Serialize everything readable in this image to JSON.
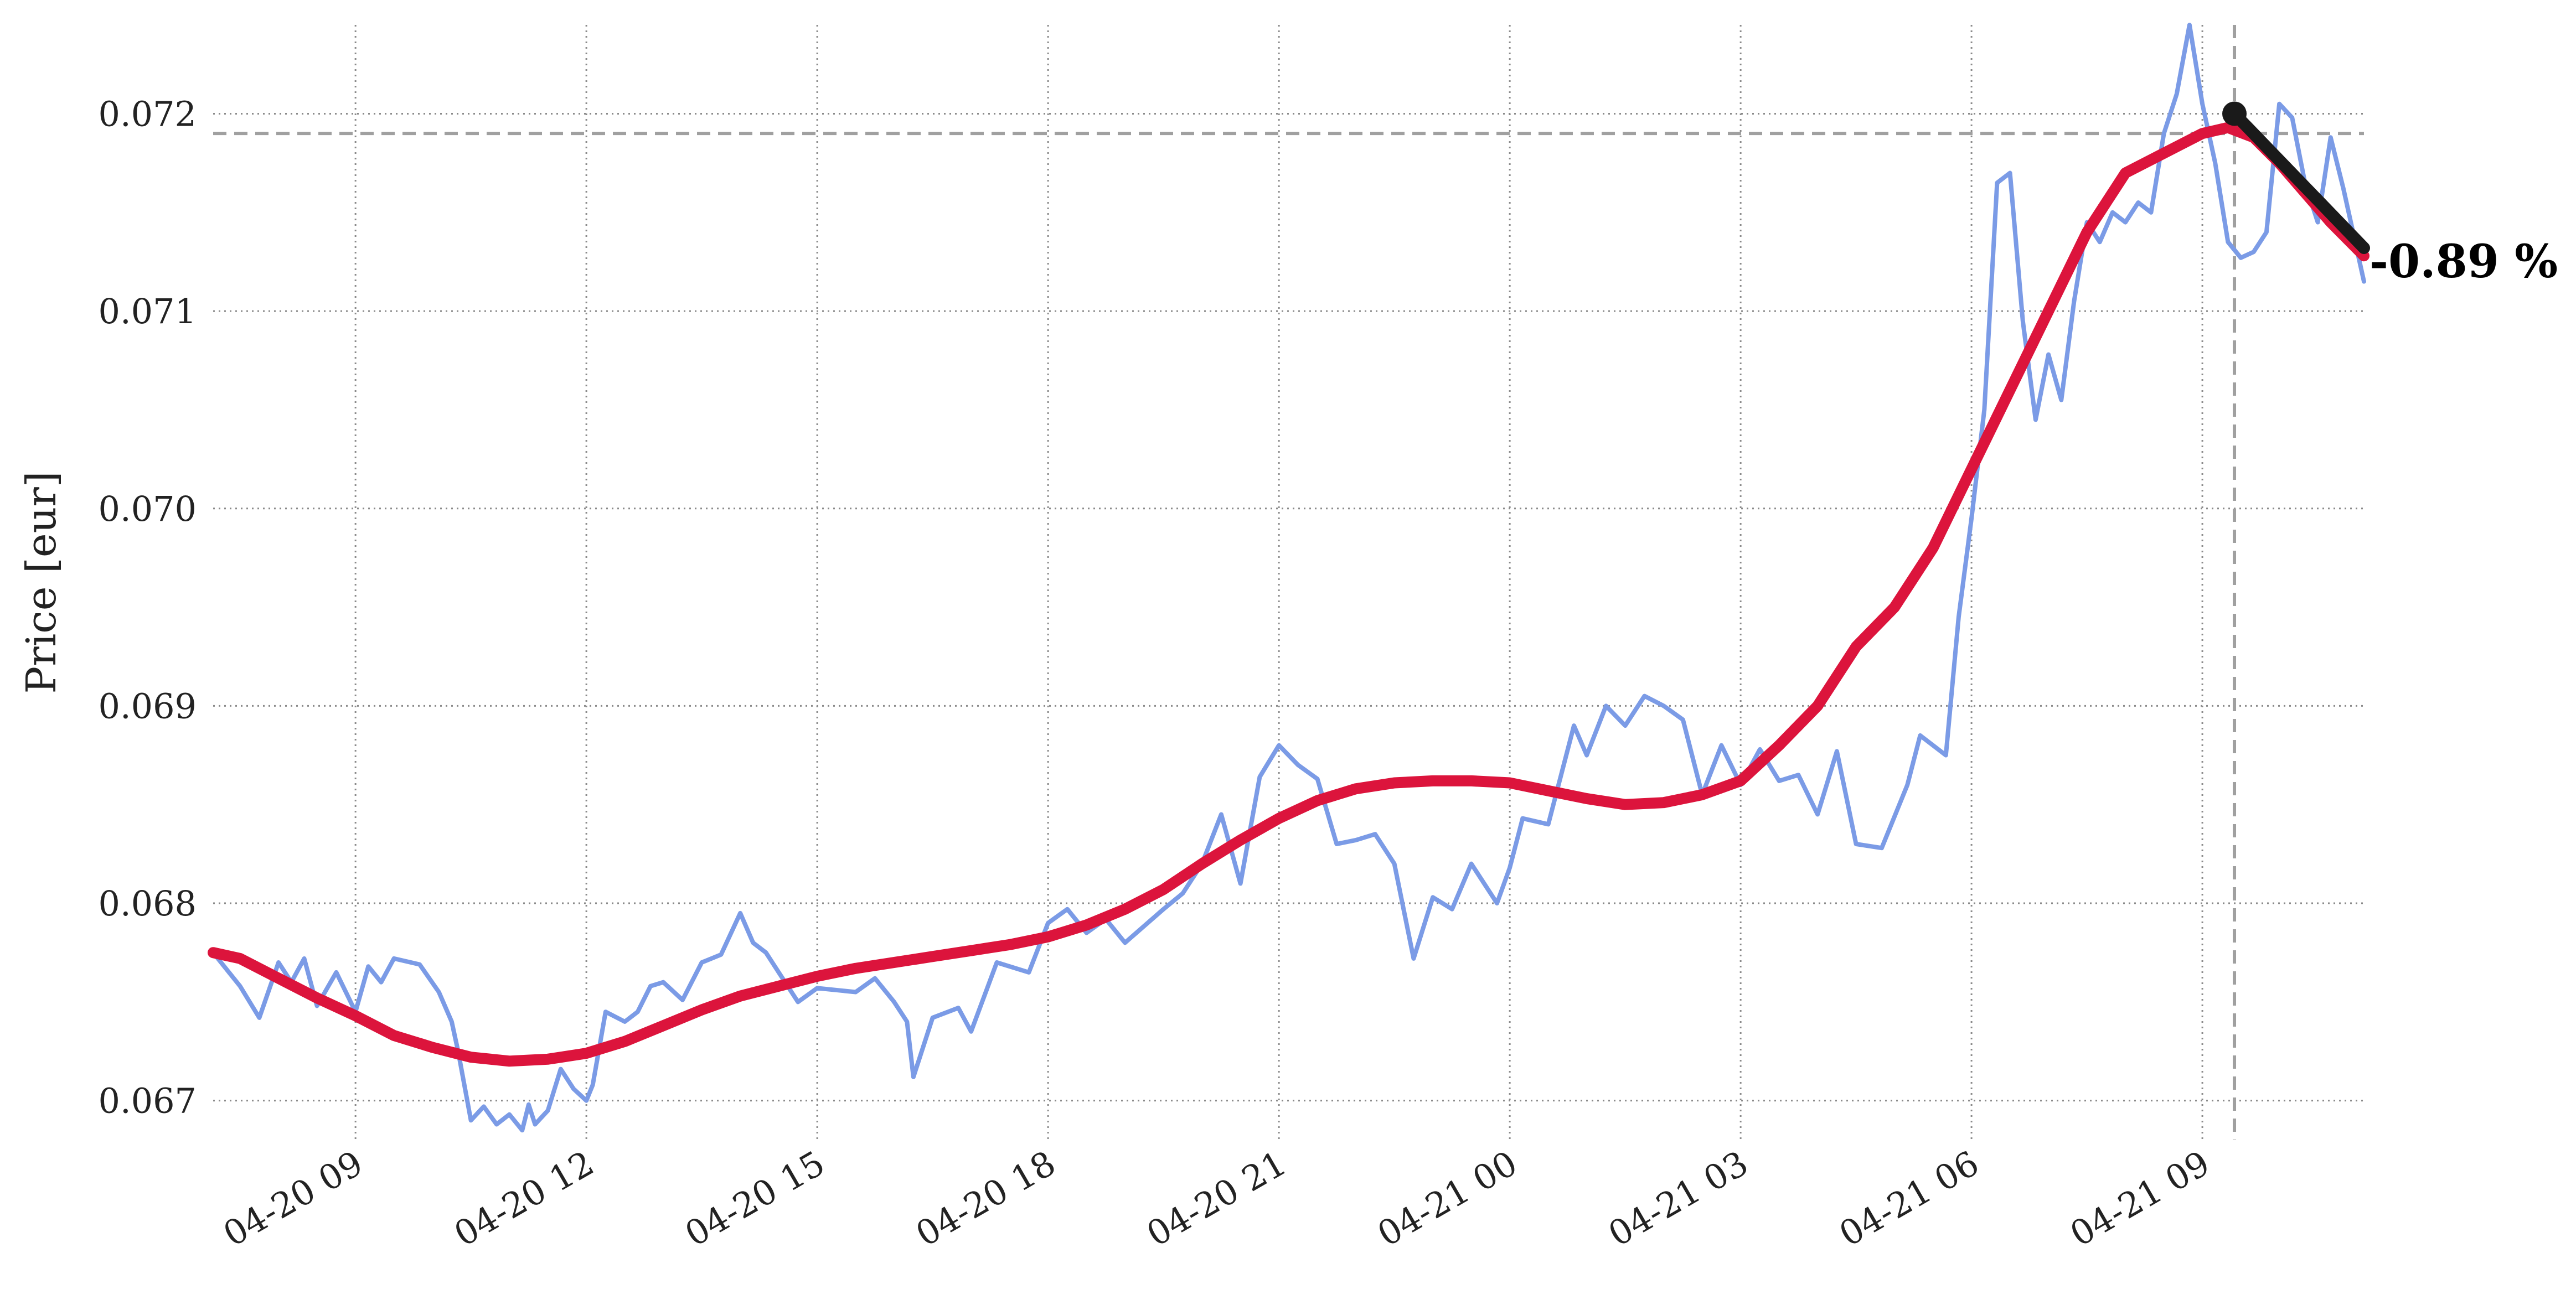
{
  "chart_data": {
    "type": "line",
    "title": "",
    "xlabel": "",
    "ylabel": "Price [eur]",
    "xlim": [
      "2024-04-20 07:09",
      "2024-04-21 11:06"
    ],
    "ylim": [
      0.0668,
      0.07245
    ],
    "grid": true,
    "x_ticks": [
      "04-20 09",
      "04-20 12",
      "04-20 15",
      "04-20 18",
      "04-20 21",
      "04-21 00",
      "04-21 03",
      "04-21 06",
      "04-21 09"
    ],
    "y_ticks": [
      "0.067",
      "0.068",
      "0.069",
      "0.070",
      "0.071",
      "0.072"
    ],
    "reference_lines": {
      "horizontal_price": 0.0719,
      "vertical_time": "04-21 09:25"
    },
    "annotation": {
      "text": "-0.89 %",
      "at_time": "04-21 11:06",
      "at_price": 0.07125
    },
    "colors": {
      "price": "#7b9be6",
      "smoothed": "#dc143c",
      "trend": "#1a1a1a",
      "reference": "#a0a0a0"
    },
    "series": [
      {
        "key": "price",
        "x": [
          "04-20 07:09",
          "04-20 07:30",
          "04-20 07:45",
          "04-20 08:00",
          "04-20 08:10",
          "04-20 08:20",
          "04-20 08:30",
          "04-20 08:45",
          "04-20 09:00",
          "04-20 09:10",
          "04-20 09:20",
          "04-20 09:30",
          "04-20 09:50",
          "04-20 10:05",
          "04-20 10:15",
          "04-20 10:20",
          "04-20 10:30",
          "04-20 10:40",
          "04-20 10:50",
          "04-20 11:00",
          "04-20 11:10",
          "04-20 11:15",
          "04-20 11:20",
          "04-20 11:30",
          "04-20 11:40",
          "04-20 11:50",
          "04-20 12:00",
          "04-20 12:05",
          "04-20 12:15",
          "04-20 12:30",
          "04-20 12:40",
          "04-20 12:50",
          "04-20 13:00",
          "04-20 13:15",
          "04-20 13:30",
          "04-20 13:45",
          "04-20 14:00",
          "04-20 14:10",
          "04-20 14:20",
          "04-20 14:30",
          "04-20 14:45",
          "04-20 15:00",
          "04-20 15:30",
          "04-20 15:45",
          "04-20 16:00",
          "04-20 16:10",
          "04-20 16:15",
          "04-20 16:30",
          "04-20 16:50",
          "04-20 17:00",
          "04-20 17:20",
          "04-20 17:45",
          "04-20 18:00",
          "04-20 18:15",
          "04-20 18:30",
          "04-20 18:45",
          "04-20 19:00",
          "04-20 19:30",
          "04-20 19:45",
          "04-20 20:00",
          "04-20 20:15",
          "04-20 20:30",
          "04-20 20:45",
          "04-20 21:00",
          "04-20 21:15",
          "04-20 21:30",
          "04-20 21:45",
          "04-20 22:00",
          "04-20 22:15",
          "04-20 22:30",
          "04-20 22:45",
          "04-20 23:00",
          "04-20 23:15",
          "04-20 23:30",
          "04-20 23:50",
          "04-21 00:00",
          "04-21 00:10",
          "04-21 00:30",
          "04-21 00:50",
          "04-21 01:00",
          "04-21 01:15",
          "04-21 01:30",
          "04-21 01:45",
          "04-21 02:00",
          "04-21 02:15",
          "04-21 02:30",
          "04-21 02:45",
          "04-21 03:00",
          "04-21 03:15",
          "04-21 03:30",
          "04-21 03:45",
          "04-21 04:00",
          "04-21 04:15",
          "04-21 04:30",
          "04-21 04:50",
          "04-21 05:10",
          "04-21 05:20",
          "04-21 05:40",
          "04-21 05:50",
          "04-21 06:00",
          "04-21 06:10",
          "04-21 06:20",
          "04-21 06:30",
          "04-21 06:40",
          "04-21 06:50",
          "04-21 07:00",
          "04-21 07:10",
          "04-21 07:20",
          "04-21 07:30",
          "04-21 07:40",
          "04-21 07:50",
          "04-21 08:00",
          "04-21 08:10",
          "04-21 08:20",
          "04-21 08:30",
          "04-21 08:40",
          "04-21 08:50",
          "04-21 09:00",
          "04-21 09:10",
          "04-21 09:20",
          "04-21 09:30",
          "04-21 09:40",
          "04-21 09:50",
          "04-21 10:00",
          "04-21 10:10",
          "04-21 10:20",
          "04-21 10:30",
          "04-21 10:40",
          "04-21 10:50",
          "04-21 11:06"
        ],
        "y": [
          0.06775,
          0.06758,
          0.06742,
          0.0677,
          0.0676,
          0.06772,
          0.06748,
          0.06765,
          0.06745,
          0.06768,
          0.0676,
          0.06772,
          0.06769,
          0.06755,
          0.0674,
          0.06725,
          0.0669,
          0.06697,
          0.06688,
          0.06693,
          0.06685,
          0.06698,
          0.06688,
          0.06695,
          0.06716,
          0.06706,
          0.067,
          0.06708,
          0.06745,
          0.0674,
          0.06745,
          0.06758,
          0.0676,
          0.06751,
          0.0677,
          0.06774,
          0.06795,
          0.0678,
          0.06775,
          0.06765,
          0.0675,
          0.06757,
          0.06755,
          0.06762,
          0.0675,
          0.0674,
          0.06712,
          0.06742,
          0.06747,
          0.06735,
          0.0677,
          0.06765,
          0.0679,
          0.06797,
          0.06785,
          0.06792,
          0.0678,
          0.06797,
          0.06805,
          0.0682,
          0.06845,
          0.0681,
          0.06864,
          0.0688,
          0.0687,
          0.06863,
          0.0683,
          0.06832,
          0.06835,
          0.0682,
          0.06772,
          0.06803,
          0.06797,
          0.0682,
          0.068,
          0.06818,
          0.06843,
          0.0684,
          0.0689,
          0.06875,
          0.069,
          0.0689,
          0.06905,
          0.069,
          0.06893,
          0.06855,
          0.0688,
          0.0686,
          0.06878,
          0.06862,
          0.06865,
          0.06845,
          0.06877,
          0.0683,
          0.06828,
          0.0686,
          0.06885,
          0.06875,
          0.06945,
          0.06995,
          0.0705,
          0.07165,
          0.0717,
          0.07095,
          0.07045,
          0.07078,
          0.07055,
          0.07105,
          0.07145,
          0.07135,
          0.0715,
          0.07145,
          0.07155,
          0.0715,
          0.0719,
          0.0721,
          0.07245,
          0.07205,
          0.07175,
          0.07135,
          0.07127,
          0.0713,
          0.0714,
          0.07205,
          0.07198,
          0.07165,
          0.07145,
          0.07188,
          0.07162,
          0.07115
        ]
      },
      {
        "key": "smoothed",
        "x": [
          "04-20 07:09",
          "04-20 07:30",
          "04-20 08:00",
          "04-20 08:30",
          "04-20 09:00",
          "04-20 09:30",
          "04-20 10:00",
          "04-20 10:30",
          "04-20 11:00",
          "04-20 11:30",
          "04-20 12:00",
          "04-20 12:30",
          "04-20 13:00",
          "04-20 13:30",
          "04-20 14:00",
          "04-20 14:30",
          "04-20 15:00",
          "04-20 15:30",
          "04-20 16:00",
          "04-20 16:30",
          "04-20 17:00",
          "04-20 17:30",
          "04-20 18:00",
          "04-20 18:30",
          "04-20 19:00",
          "04-20 19:30",
          "04-20 20:00",
          "04-20 20:30",
          "04-20 21:00",
          "04-20 21:30",
          "04-20 22:00",
          "04-20 22:30",
          "04-20 23:00",
          "04-20 23:30",
          "04-21 00:00",
          "04-21 00:30",
          "04-21 01:00",
          "04-21 01:30",
          "04-21 02:00",
          "04-21 02:30",
          "04-21 03:00",
          "04-21 03:30",
          "04-21 04:00",
          "04-21 04:30",
          "04-21 05:00",
          "04-21 05:30",
          "04-21 06:00",
          "04-21 06:30",
          "04-21 07:00",
          "04-21 07:30",
          "04-21 08:00",
          "04-21 08:30",
          "04-21 09:00",
          "04-21 09:20",
          "04-21 09:40",
          "04-21 10:00",
          "04-21 10:20",
          "04-21 10:40",
          "04-21 11:06"
        ],
        "y": [
          0.06775,
          0.06772,
          0.06762,
          0.06752,
          0.06743,
          0.06733,
          0.06727,
          0.06722,
          0.0672,
          0.06721,
          0.06724,
          0.0673,
          0.06738,
          0.06746,
          0.06753,
          0.06758,
          0.06763,
          0.06767,
          0.0677,
          0.06773,
          0.06776,
          0.06779,
          0.06783,
          0.06789,
          0.06797,
          0.06807,
          0.0682,
          0.06832,
          0.06843,
          0.06852,
          0.06858,
          0.06861,
          0.06862,
          0.06862,
          0.06861,
          0.06857,
          0.06853,
          0.0685,
          0.06851,
          0.06855,
          0.06862,
          0.0688,
          0.069,
          0.0693,
          0.0695,
          0.0698,
          0.0702,
          0.0706,
          0.071,
          0.0714,
          0.0717,
          0.0718,
          0.0719,
          0.07193,
          0.07188,
          0.07175,
          0.0716,
          0.07145,
          0.07128
        ]
      },
      {
        "key": "trend",
        "x": [
          "04-21 09:25",
          "04-21 11:06"
        ],
        "y": [
          0.072,
          0.07132
        ]
      }
    ]
  }
}
